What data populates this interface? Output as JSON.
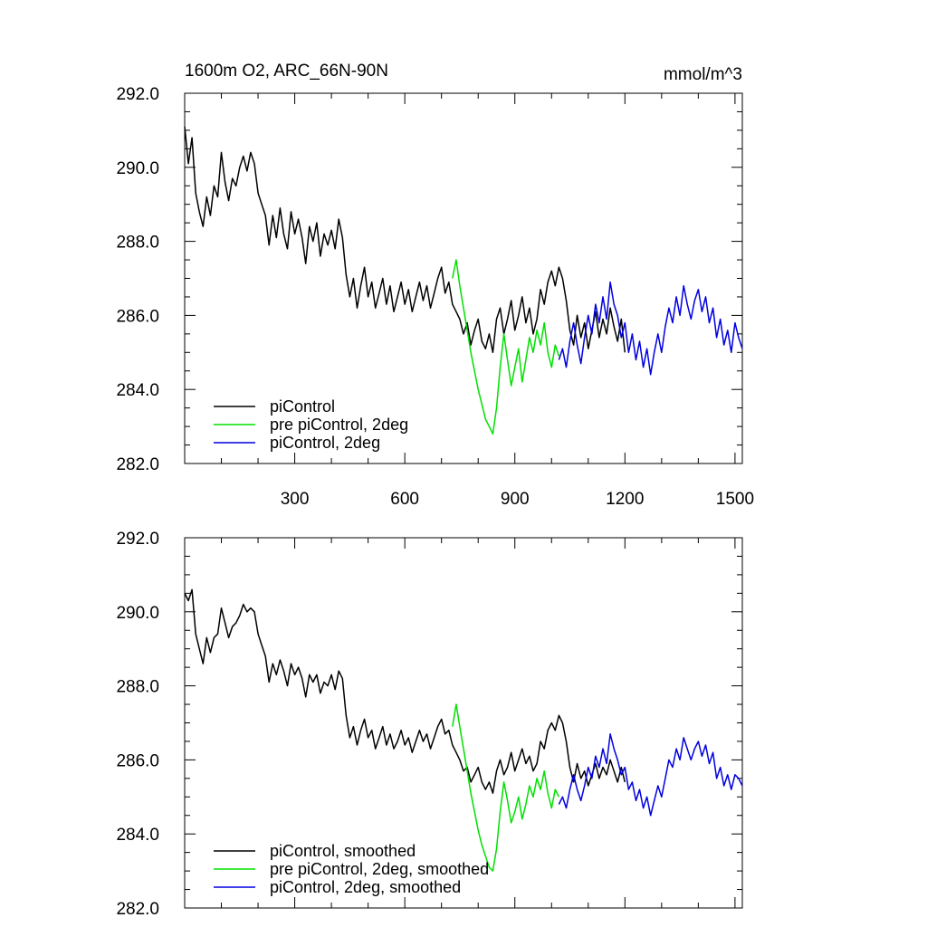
{
  "panels": [
    {
      "title": "1600m O2, ARC_66N-90N",
      "units": "mmol/m^3",
      "show_x_labels": true
    },
    {
      "title": "",
      "units": "",
      "show_x_labels": false
    }
  ],
  "chart_data": [
    {
      "type": "line",
      "title": "1600m O2, ARC_66N-90N",
      "units": "mmol/m^3",
      "xlim": [
        0,
        1520
      ],
      "ylim": [
        282.0,
        292.0
      ],
      "x_ticks": [
        300,
        600,
        900,
        1200,
        1500
      ],
      "y_ticks": [
        "282.0",
        "284.0",
        "286.0",
        "288.0",
        "290.0",
        "292.0"
      ],
      "legend_position": "bottom-left",
      "series": [
        {
          "name": "piControl",
          "color": "#000000",
          "x": [
            0,
            10,
            20,
            30,
            40,
            50,
            60,
            70,
            80,
            90,
            100,
            110,
            120,
            130,
            140,
            150,
            160,
            170,
            180,
            190,
            200,
            210,
            220,
            230,
            240,
            250,
            260,
            270,
            280,
            290,
            300,
            310,
            320,
            330,
            340,
            350,
            360,
            370,
            380,
            390,
            400,
            410,
            420,
            430,
            440,
            450,
            460,
            470,
            480,
            490,
            500,
            510,
            520,
            530,
            540,
            550,
            560,
            570,
            580,
            590,
            600,
            610,
            620,
            630,
            640,
            650,
            660,
            670,
            680,
            690,
            700,
            710,
            720,
            730,
            740,
            750,
            760,
            770,
            780,
            790,
            800,
            810,
            820,
            830,
            840,
            850,
            860,
            870,
            880,
            890,
            900,
            910,
            920,
            930,
            940,
            950,
            960,
            970,
            980,
            990,
            1000,
            1010,
            1020,
            1030,
            1040,
            1050,
            1060,
            1070,
            1080,
            1090,
            1100,
            1110,
            1120,
            1130,
            1140,
            1150,
            1160,
            1170,
            1180,
            1190,
            1200
          ],
          "y": [
            291.1,
            290.1,
            290.8,
            289.3,
            288.8,
            288.4,
            289.2,
            288.7,
            289.5,
            289.2,
            290.4,
            289.6,
            289.1,
            289.7,
            289.5,
            290.0,
            290.3,
            289.9,
            290.4,
            290.1,
            289.3,
            289.0,
            288.7,
            287.9,
            288.7,
            288.1,
            288.9,
            288.2,
            287.8,
            288.8,
            288.2,
            288.6,
            288.1,
            287.4,
            288.4,
            288.0,
            288.5,
            287.6,
            288.2,
            287.9,
            288.3,
            287.8,
            288.6,
            288.1,
            287.1,
            286.5,
            287.0,
            286.2,
            286.8,
            287.3,
            286.5,
            286.9,
            286.2,
            286.6,
            287.0,
            286.3,
            286.8,
            286.1,
            286.5,
            286.9,
            286.3,
            286.7,
            286.1,
            286.5,
            286.9,
            286.4,
            286.8,
            286.2,
            286.6,
            287.0,
            287.3,
            286.6,
            286.9,
            286.3,
            286.1,
            285.9,
            285.5,
            285.8,
            285.2,
            285.6,
            285.9,
            285.3,
            285.1,
            285.5,
            285.0,
            285.9,
            286.2,
            285.5,
            285.9,
            286.4,
            285.6,
            286.0,
            286.5,
            285.8,
            286.2,
            285.5,
            285.9,
            286.7,
            286.3,
            286.9,
            287.2,
            286.8,
            287.3,
            287.0,
            286.4,
            285.6,
            285.2,
            286.0,
            285.4,
            285.8,
            285.1,
            285.6,
            286.1,
            285.4,
            285.9,
            285.5,
            286.2,
            285.7,
            285.3,
            285.9,
            285.0
          ]
        },
        {
          "name": "pre piControl, 2deg",
          "color": "#00e000",
          "x": [
            730,
            740,
            750,
            760,
            770,
            780,
            790,
            800,
            810,
            820,
            830,
            840,
            850,
            860,
            870,
            880,
            890,
            900,
            910,
            920,
            930,
            940,
            950,
            960,
            970,
            980,
            990,
            1000,
            1010,
            1020
          ],
          "y": [
            287.0,
            287.5,
            286.8,
            286.2,
            285.6,
            285.0,
            284.5,
            284.0,
            283.6,
            283.2,
            283.0,
            282.8,
            283.5,
            284.6,
            285.5,
            284.8,
            284.1,
            284.6,
            285.1,
            284.2,
            284.8,
            285.4,
            285.0,
            285.6,
            285.2,
            285.8,
            285.0,
            284.6,
            285.2,
            284.9
          ]
        },
        {
          "name": "piControl, 2deg",
          "color": "#0000e0",
          "x": [
            1020,
            1030,
            1040,
            1050,
            1060,
            1070,
            1080,
            1090,
            1100,
            1110,
            1120,
            1130,
            1140,
            1150,
            1160,
            1170,
            1180,
            1190,
            1200,
            1210,
            1220,
            1230,
            1240,
            1250,
            1260,
            1270,
            1280,
            1290,
            1300,
            1310,
            1320,
            1330,
            1340,
            1350,
            1360,
            1370,
            1380,
            1390,
            1400,
            1410,
            1420,
            1430,
            1440,
            1450,
            1460,
            1470,
            1480,
            1490,
            1500,
            1510,
            1520
          ],
          "y": [
            284.8,
            285.1,
            284.6,
            285.3,
            285.8,
            285.2,
            284.7,
            285.4,
            286.0,
            285.5,
            286.3,
            285.8,
            286.5,
            285.9,
            286.9,
            286.3,
            286.0,
            285.4,
            285.8,
            285.0,
            285.5,
            284.8,
            285.3,
            284.6,
            285.1,
            284.4,
            285.0,
            285.5,
            285.0,
            285.7,
            286.2,
            285.8,
            286.5,
            286.0,
            286.8,
            286.3,
            285.9,
            286.4,
            286.7,
            286.1,
            286.5,
            285.8,
            286.2,
            285.4,
            285.9,
            285.2,
            285.6,
            285.0,
            285.8,
            285.4,
            285.1
          ]
        }
      ]
    },
    {
      "type": "line",
      "title": "",
      "units": "",
      "xlim": [
        0,
        1520
      ],
      "ylim": [
        282.0,
        292.0
      ],
      "x_ticks": [
        300,
        600,
        900,
        1200,
        1500
      ],
      "y_ticks": [
        "282.0",
        "284.0",
        "286.0",
        "288.0",
        "290.0",
        "292.0"
      ],
      "legend_position": "bottom-left",
      "series": [
        {
          "name": "piControl, smoothed",
          "color": "#000000",
          "x": [
            0,
            10,
            20,
            30,
            40,
            50,
            60,
            70,
            80,
            90,
            100,
            110,
            120,
            130,
            140,
            150,
            160,
            170,
            180,
            190,
            200,
            210,
            220,
            230,
            240,
            250,
            260,
            270,
            280,
            290,
            300,
            310,
            320,
            330,
            340,
            350,
            360,
            370,
            380,
            390,
            400,
            410,
            420,
            430,
            440,
            450,
            460,
            470,
            480,
            490,
            500,
            510,
            520,
            530,
            540,
            550,
            560,
            570,
            580,
            590,
            600,
            610,
            620,
            630,
            640,
            650,
            660,
            670,
            680,
            690,
            700,
            710,
            720,
            730,
            740,
            750,
            760,
            770,
            780,
            790,
            800,
            810,
            820,
            830,
            840,
            850,
            860,
            870,
            880,
            890,
            900,
            910,
            920,
            930,
            940,
            950,
            960,
            970,
            980,
            990,
            1000,
            1010,
            1020,
            1030,
            1040,
            1050,
            1060,
            1070,
            1080,
            1090,
            1100,
            1110,
            1120,
            1130,
            1140,
            1150,
            1160,
            1170,
            1180,
            1190,
            1200
          ],
          "y": [
            290.5,
            290.3,
            290.6,
            289.4,
            289.0,
            288.6,
            289.3,
            288.9,
            289.3,
            289.4,
            290.1,
            289.7,
            289.3,
            289.6,
            289.7,
            289.9,
            290.2,
            290.0,
            290.1,
            290.0,
            289.4,
            289.1,
            288.8,
            288.1,
            288.6,
            288.3,
            288.7,
            288.4,
            288.0,
            288.6,
            288.3,
            288.5,
            288.2,
            287.7,
            288.3,
            288.1,
            288.3,
            287.8,
            288.1,
            288.0,
            288.3,
            287.9,
            288.4,
            288.2,
            287.2,
            286.6,
            286.9,
            286.4,
            286.8,
            287.1,
            286.6,
            286.8,
            286.3,
            286.6,
            286.9,
            286.4,
            286.7,
            286.3,
            286.5,
            286.8,
            286.4,
            286.6,
            286.2,
            286.5,
            286.8,
            286.5,
            286.7,
            286.3,
            286.6,
            286.9,
            287.1,
            286.7,
            286.8,
            286.4,
            286.2,
            286.0,
            285.7,
            285.8,
            285.4,
            285.6,
            285.8,
            285.4,
            285.2,
            285.4,
            285.1,
            285.7,
            286.0,
            285.6,
            285.8,
            286.2,
            285.7,
            286.0,
            286.3,
            285.9,
            286.1,
            285.7,
            285.9,
            286.5,
            286.3,
            286.8,
            287.0,
            286.8,
            287.2,
            287.0,
            286.5,
            285.8,
            285.4,
            285.9,
            285.5,
            285.7,
            285.3,
            285.6,
            285.9,
            285.5,
            285.8,
            285.6,
            286.0,
            285.7,
            285.4,
            285.8,
            285.4
          ]
        },
        {
          "name": "pre piControl, 2deg, smoothed",
          "color": "#00e000",
          "x": [
            730,
            740,
            750,
            760,
            770,
            780,
            790,
            800,
            810,
            820,
            830,
            840,
            850,
            860,
            870,
            880,
            890,
            900,
            910,
            920,
            930,
            940,
            950,
            960,
            970,
            980,
            990,
            1000,
            1010,
            1020
          ],
          "y": [
            286.9,
            287.5,
            286.9,
            286.3,
            285.7,
            285.1,
            284.6,
            284.1,
            283.7,
            283.4,
            283.1,
            283.0,
            283.6,
            284.6,
            285.4,
            284.9,
            284.3,
            284.6,
            285.0,
            284.4,
            284.8,
            285.3,
            285.0,
            285.5,
            285.2,
            285.7,
            285.1,
            284.7,
            285.2,
            285.0
          ]
        },
        {
          "name": "piControl, 2deg, smoothed",
          "color": "#0000e0",
          "x": [
            1020,
            1030,
            1040,
            1050,
            1060,
            1070,
            1080,
            1090,
            1100,
            1110,
            1120,
            1130,
            1140,
            1150,
            1160,
            1170,
            1180,
            1190,
            1200,
            1210,
            1220,
            1230,
            1240,
            1250,
            1260,
            1270,
            1280,
            1290,
            1300,
            1310,
            1320,
            1330,
            1340,
            1350,
            1360,
            1370,
            1380,
            1390,
            1400,
            1410,
            1420,
            1430,
            1440,
            1450,
            1460,
            1470,
            1480,
            1490,
            1500,
            1510,
            1520
          ],
          "y": [
            284.8,
            285.0,
            284.7,
            285.2,
            285.6,
            285.2,
            284.9,
            285.3,
            285.8,
            285.5,
            286.1,
            285.8,
            286.3,
            285.9,
            286.7,
            286.3,
            286.0,
            285.6,
            285.8,
            285.2,
            285.4,
            284.9,
            285.2,
            284.7,
            285.0,
            284.5,
            284.9,
            285.3,
            285.0,
            285.5,
            286.0,
            285.8,
            286.3,
            286.0,
            286.6,
            286.3,
            286.0,
            286.3,
            286.5,
            286.1,
            286.4,
            285.9,
            286.2,
            285.5,
            285.8,
            285.3,
            285.6,
            285.2,
            285.6,
            285.5,
            285.3
          ]
        }
      ]
    }
  ]
}
